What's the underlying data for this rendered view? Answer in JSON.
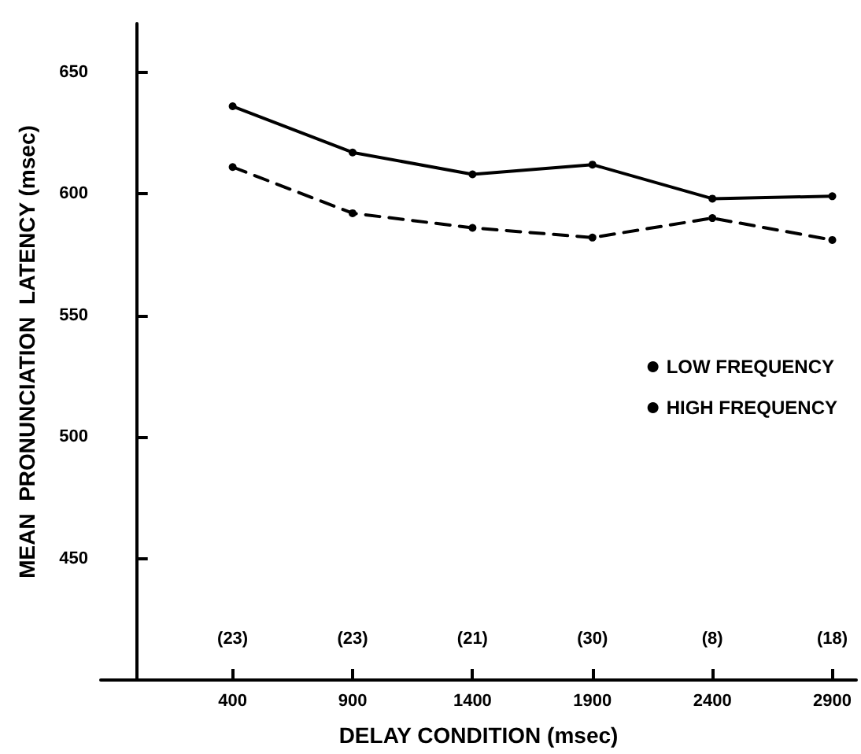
{
  "chart_data": {
    "type": "line",
    "xlabel": "DELAY CONDITION (msec)",
    "ylabel": "MEAN  PRONUNCIATION  LATENCY (msec)",
    "x": [
      400,
      900,
      1400,
      1900,
      2400,
      2900
    ],
    "series": [
      {
        "name": "LOW FREQUENCY",
        "color": "#000000",
        "line_style": "solid",
        "values": [
          636,
          617,
          608,
          612,
          598,
          599
        ]
      },
      {
        "name": "HIGH FREQUENCY",
        "color": "#000000",
        "line_style": "dashed",
        "values": [
          611,
          592,
          586,
          582,
          590,
          581
        ]
      }
    ],
    "xlim": [
      -150,
      3000
    ],
    "xticks": [
      400,
      900,
      1400,
      1900,
      2400,
      2900
    ],
    "ylim": [
      400,
      670
    ],
    "yticks": [
      450,
      500,
      550,
      600,
      650
    ],
    "marker": "circle",
    "grid": false,
    "legend": "right",
    "annotations": [
      "(23)",
      "(23)",
      "(21)",
      "(30)",
      "(8)",
      "(18)"
    ]
  }
}
